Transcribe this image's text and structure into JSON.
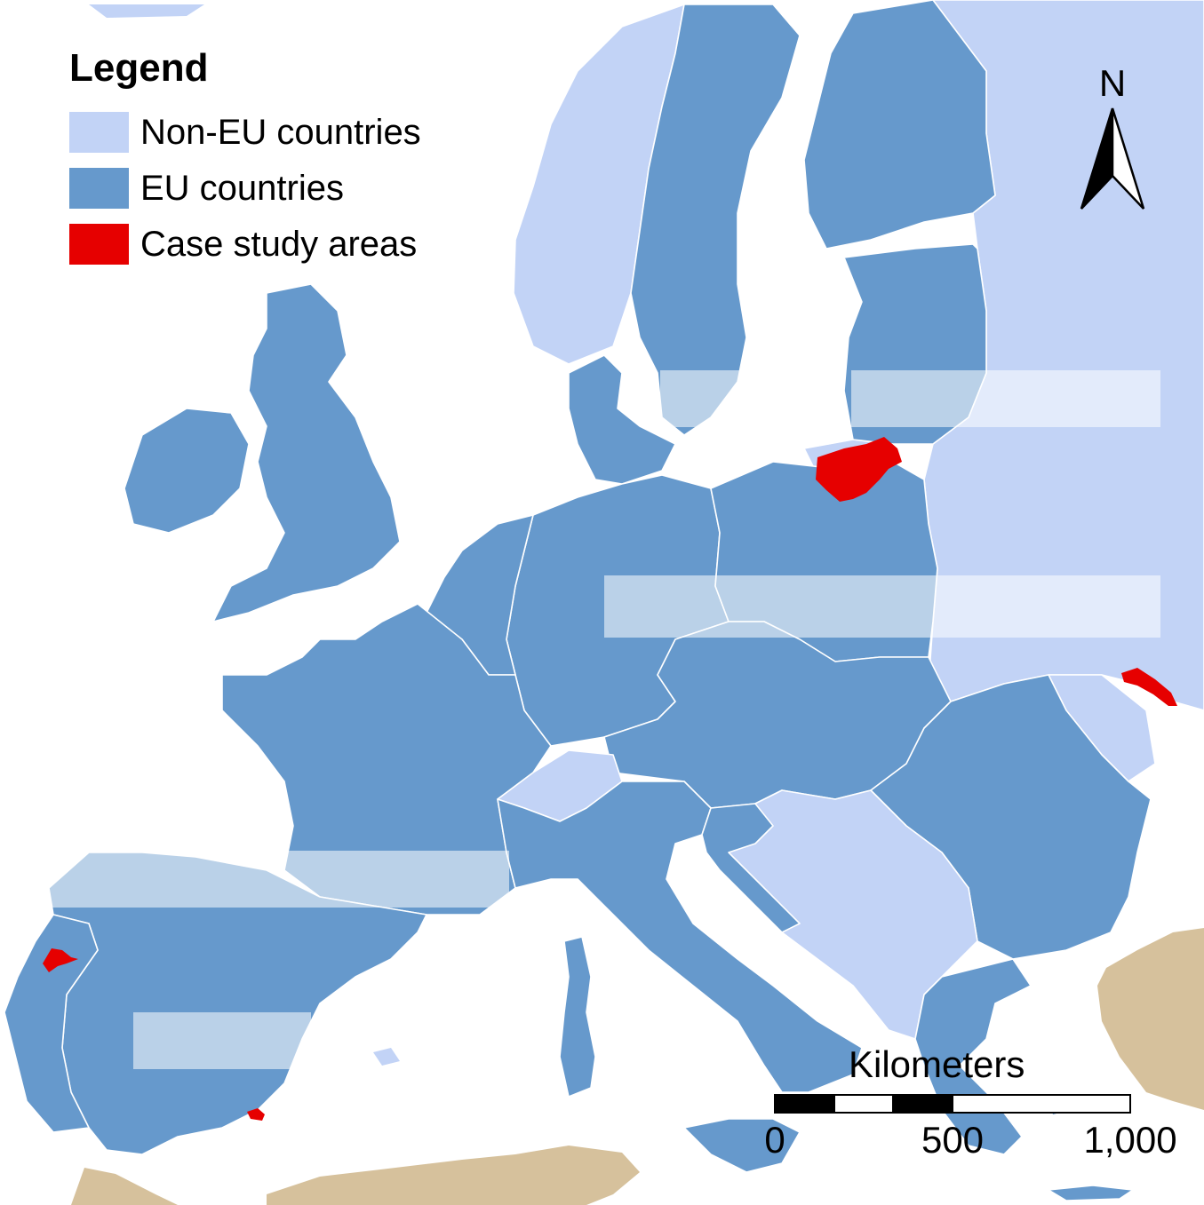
{
  "legend": {
    "title": "Legend",
    "items": [
      {
        "label": "Non-EU countries",
        "color": "#c2d3f6"
      },
      {
        "label": "EU countries",
        "color": "#6699cc"
      },
      {
        "label": "Case study areas",
        "color": "#e60000"
      }
    ]
  },
  "north_arrow": {
    "letter": "N"
  },
  "scale_bar": {
    "title": "Kilometers",
    "ticks": [
      "0",
      "500",
      "1,000"
    ]
  },
  "colors": {
    "sea": "#ffffff",
    "non_eu": "#c2d3f6",
    "eu": "#6699cc",
    "case": "#e60000",
    "africa_asia": "#d6c19c",
    "borders": "#ffffff"
  },
  "icons": {
    "north_arrow": "north-arrow-icon"
  }
}
